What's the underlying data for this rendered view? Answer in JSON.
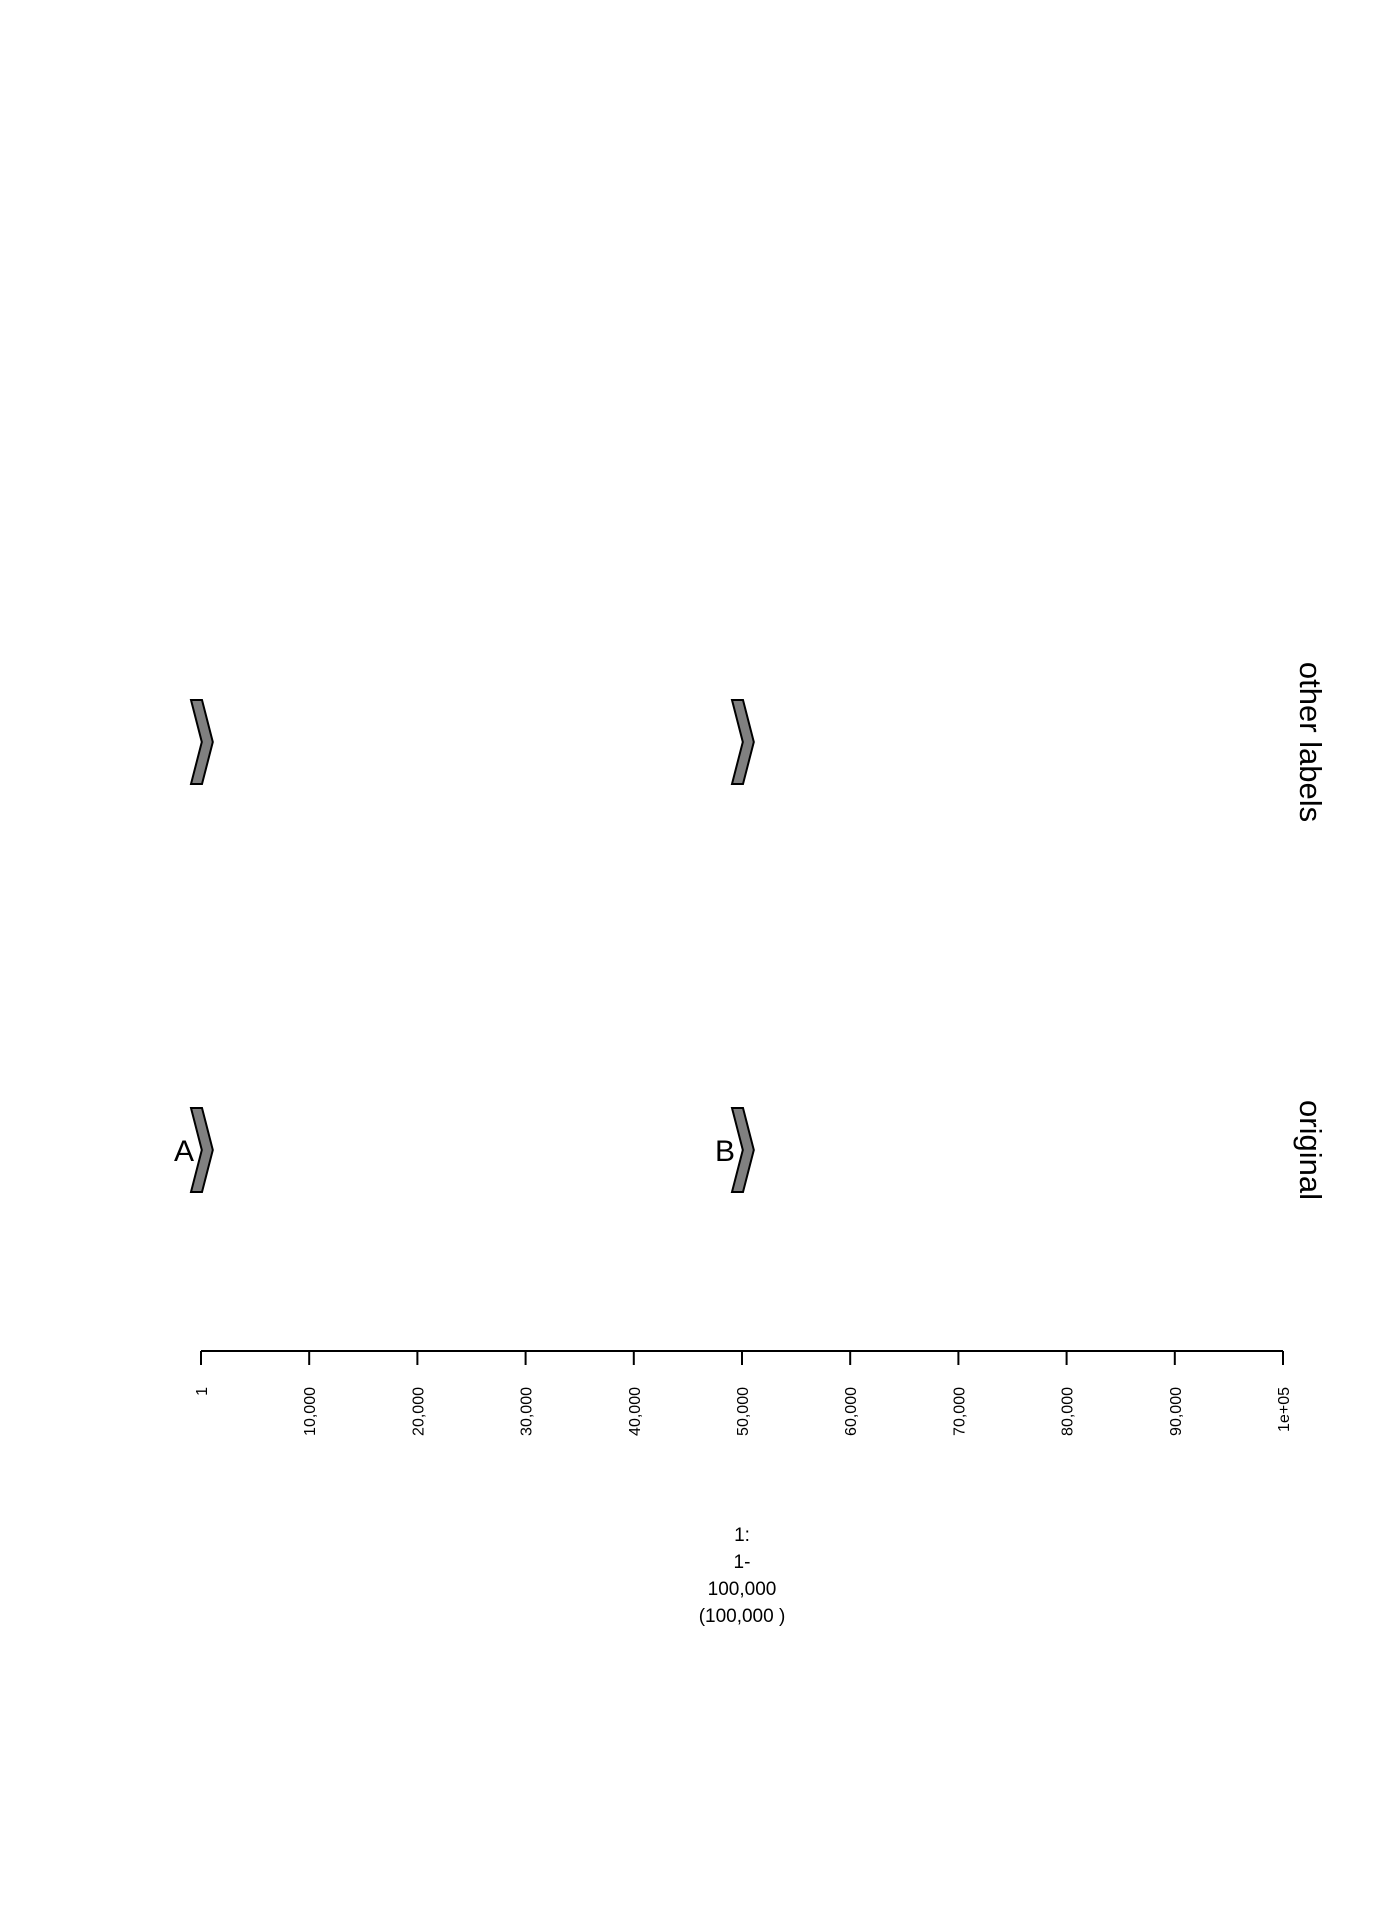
{
  "tracks": [
    {
      "label": "original",
      "features": [
        {
          "name": "A",
          "start": 1,
          "end": 1000,
          "strand": "+",
          "color": "#808080"
        },
        {
          "name": "B",
          "start": 50000,
          "end": 51000,
          "strand": "+",
          "color": "#808080"
        }
      ]
    },
    {
      "label": "other labels",
      "features": [
        {
          "name": "",
          "start": 1,
          "end": 1000,
          "strand": "+",
          "color": "#808080"
        },
        {
          "name": "",
          "start": 50000,
          "end": 51000,
          "strand": "+",
          "color": "#808080"
        }
      ]
    }
  ],
  "scale": {
    "min": 1,
    "max": 100000,
    "tick_values": [
      1,
      10000,
      20000,
      30000,
      40000,
      50000,
      60000,
      70000,
      80000,
      90000,
      100000
    ],
    "tick_labels": [
      "1",
      "10,000",
      "20,000",
      "30,000",
      "40,000",
      "50,000",
      "60,000",
      "70,000",
      "80,000",
      "90,000",
      "1e+05"
    ]
  },
  "range_label": [
    "1:",
    "1-",
    "100,000",
    "(100,000 )"
  ],
  "colors": {
    "feature_fill": "#808080",
    "outline": "#000000"
  }
}
